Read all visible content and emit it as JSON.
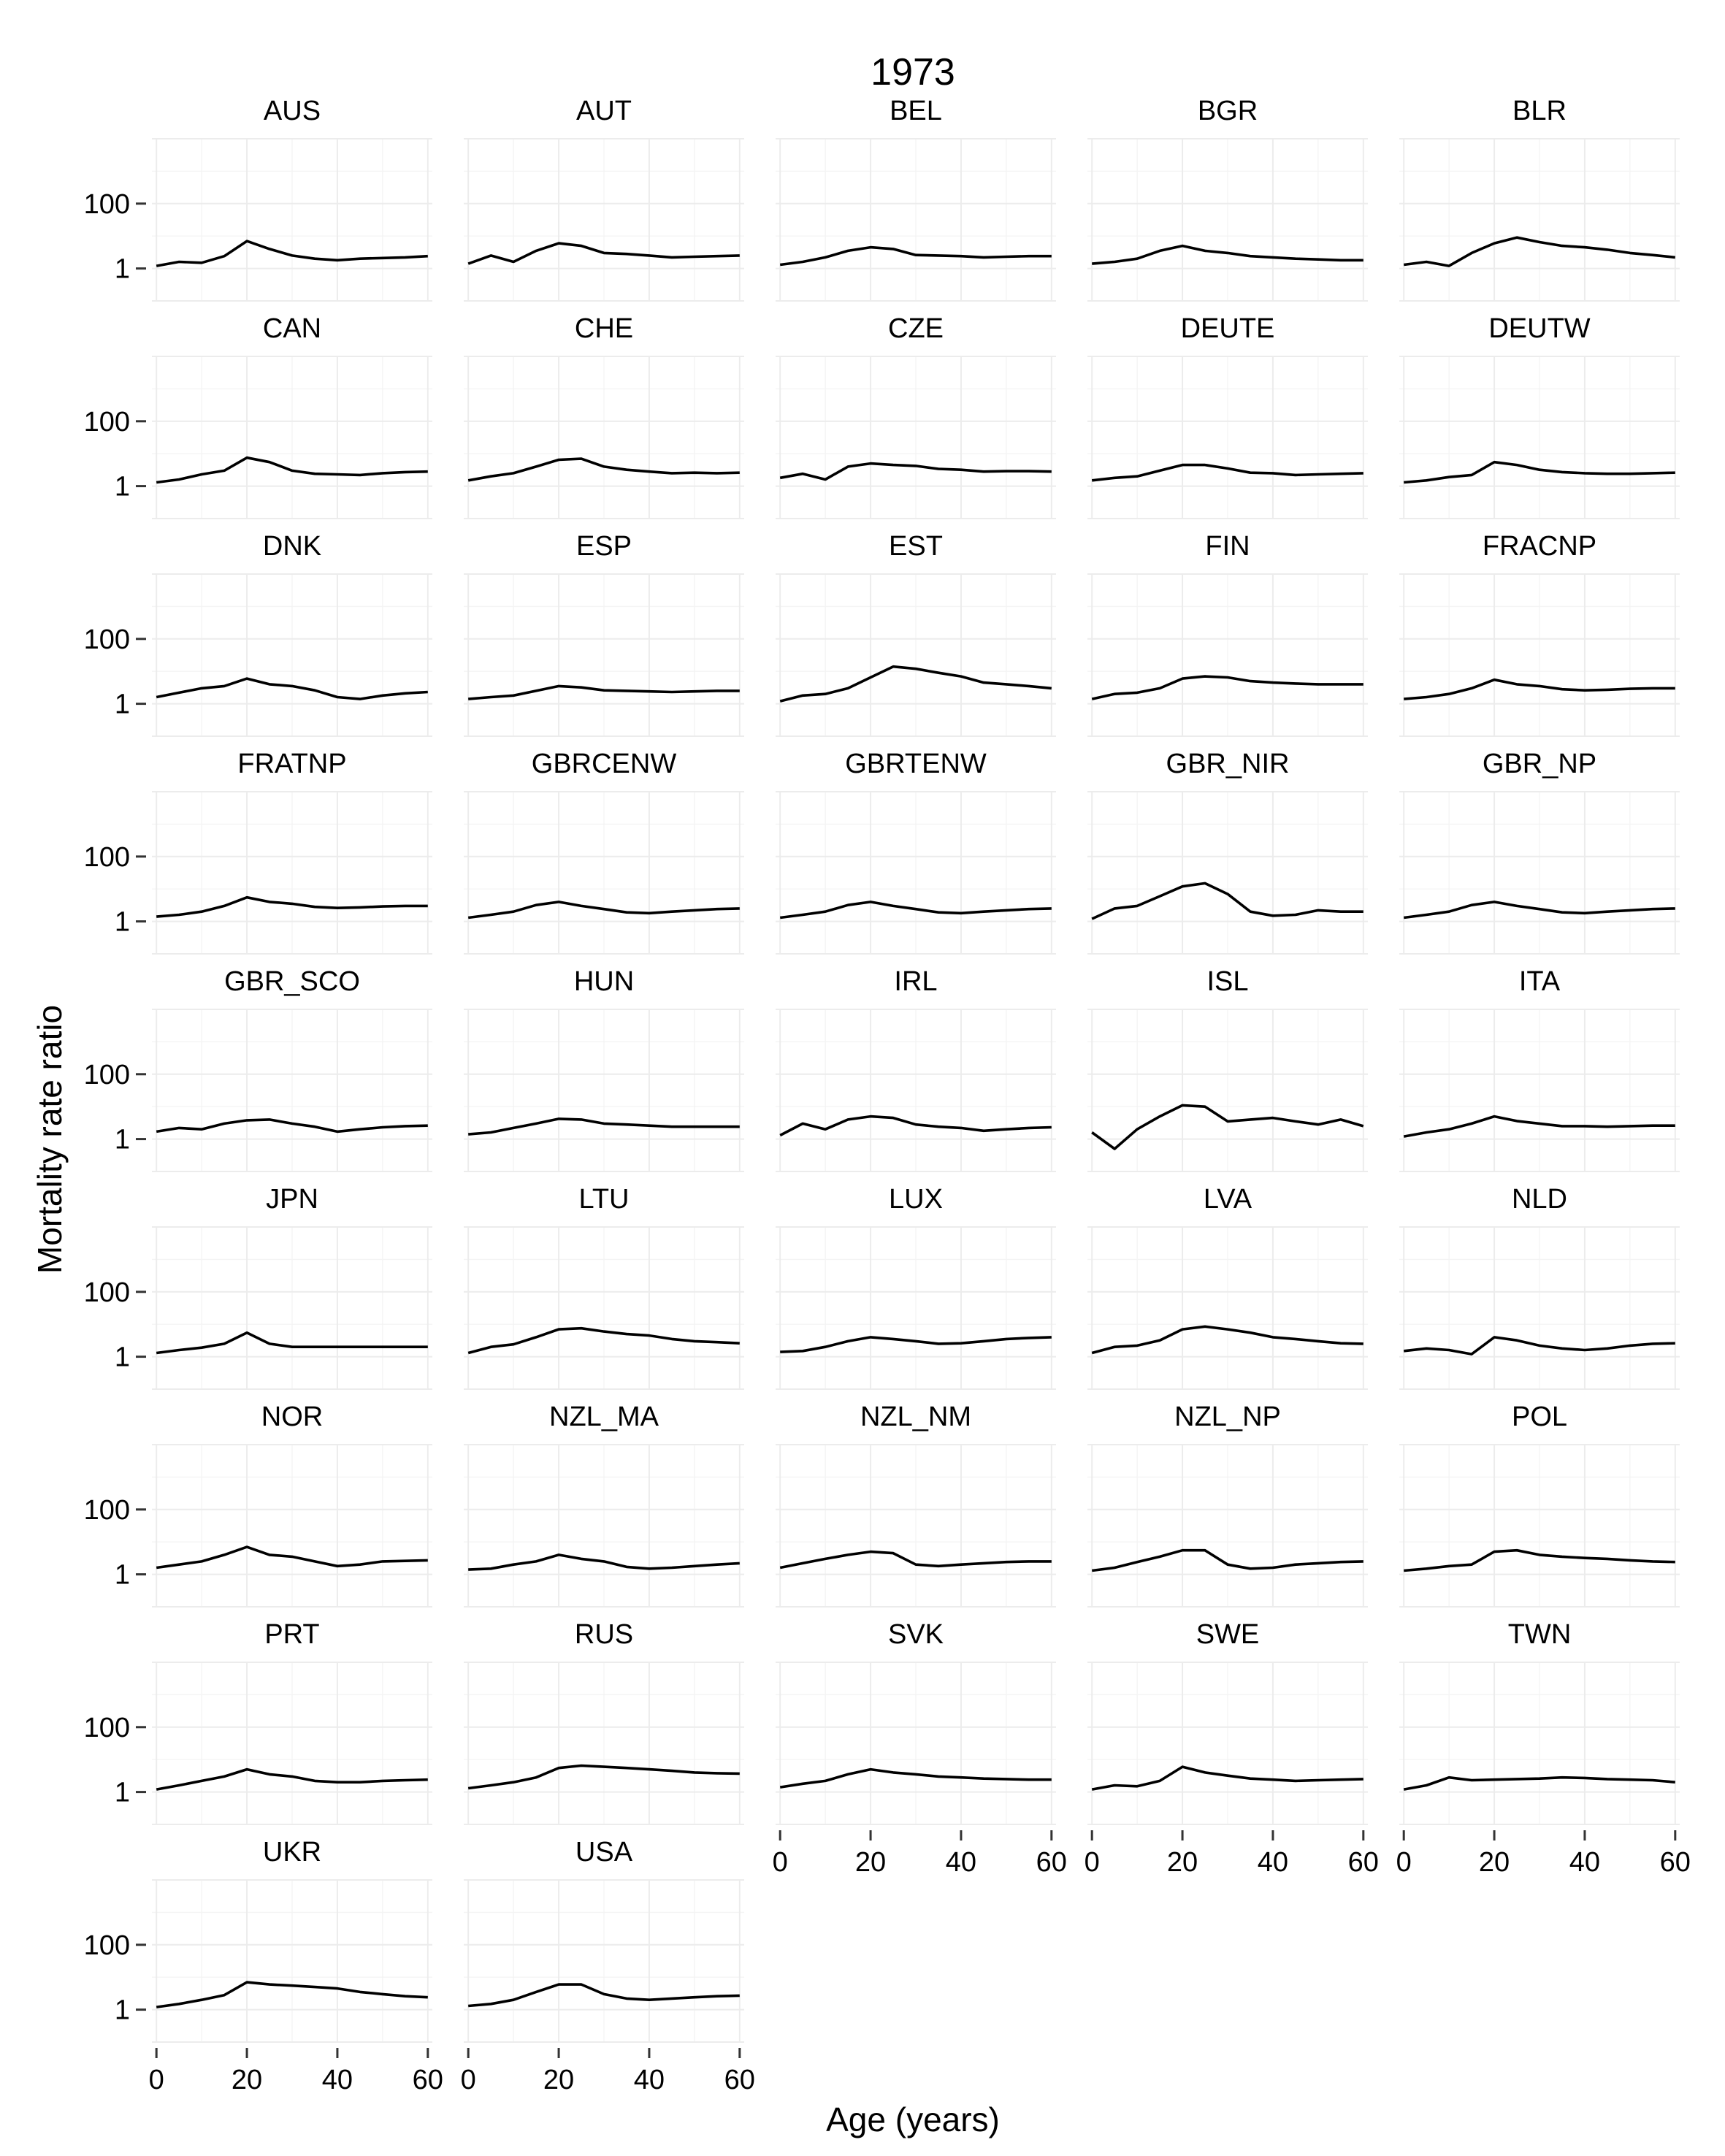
{
  "chart_data": {
    "type": "line",
    "title": "1973",
    "xlabel": "Age (years)",
    "ylabel": "Mortality rate ratio",
    "y_scale": "log10",
    "ylim": [
      0.1,
      10000
    ],
    "xlim": [
      -1,
      61
    ],
    "x_ticks": [
      0,
      20,
      40,
      60
    ],
    "x_tick_labels": [
      "0",
      "20",
      "40",
      "60"
    ],
    "y_ticks": [
      1,
      100
    ],
    "y_tick_labels": [
      "1",
      "100"
    ],
    "grid": true,
    "ncols": 5,
    "x": [
      0,
      5,
      10,
      15,
      20,
      25,
      30,
      35,
      40,
      45,
      50,
      55,
      60
    ],
    "panels": [
      {
        "name": "AUS",
        "y": [
          1.2,
          1.6,
          1.5,
          2.4,
          7.0,
          4.0,
          2.5,
          2.0,
          1.8,
          2.0,
          2.1,
          2.2,
          2.4
        ]
      },
      {
        "name": "AUT",
        "y": [
          1.4,
          2.5,
          1.6,
          3.5,
          6.0,
          5.0,
          3.0,
          2.8,
          2.5,
          2.2,
          2.3,
          2.4,
          2.5
        ]
      },
      {
        "name": "BEL",
        "y": [
          1.3,
          1.6,
          2.2,
          3.5,
          4.5,
          4.0,
          2.6,
          2.5,
          2.4,
          2.2,
          2.3,
          2.4,
          2.4
        ]
      },
      {
        "name": "BGR",
        "y": [
          1.4,
          1.6,
          2.0,
          3.5,
          5.0,
          3.5,
          3.0,
          2.4,
          2.2,
          2.0,
          1.9,
          1.8,
          1.8
        ]
      },
      {
        "name": "BLR",
        "y": [
          1.3,
          1.6,
          1.2,
          3.0,
          6.0,
          9.0,
          6.5,
          5.0,
          4.5,
          3.8,
          3.0,
          2.6,
          2.2
        ]
      },
      {
        "name": "CAN",
        "y": [
          1.3,
          1.6,
          2.3,
          3.0,
          7.5,
          5.5,
          3.0,
          2.4,
          2.3,
          2.2,
          2.5,
          2.7,
          2.8
        ]
      },
      {
        "name": "CHE",
        "y": [
          1.5,
          2.0,
          2.5,
          4.0,
          6.5,
          7.0,
          4.0,
          3.2,
          2.8,
          2.5,
          2.6,
          2.5,
          2.6
        ]
      },
      {
        "name": "CZE",
        "y": [
          1.8,
          2.4,
          1.6,
          4.0,
          5.0,
          4.5,
          4.2,
          3.4,
          3.2,
          2.8,
          2.9,
          2.9,
          2.8
        ]
      },
      {
        "name": "DEUTE",
        "y": [
          1.5,
          1.8,
          2.0,
          3.0,
          4.5,
          4.5,
          3.5,
          2.6,
          2.5,
          2.2,
          2.3,
          2.4,
          2.5
        ]
      },
      {
        "name": "DEUTW",
        "y": [
          1.3,
          1.5,
          1.9,
          2.2,
          5.5,
          4.5,
          3.2,
          2.7,
          2.5,
          2.4,
          2.4,
          2.5,
          2.6
        ]
      },
      {
        "name": "DNK",
        "y": [
          1.6,
          2.2,
          3.0,
          3.5,
          6.0,
          4.0,
          3.5,
          2.6,
          1.6,
          1.4,
          1.8,
          2.1,
          2.3
        ]
      },
      {
        "name": "ESP",
        "y": [
          1.4,
          1.6,
          1.8,
          2.5,
          3.5,
          3.2,
          2.6,
          2.5,
          2.4,
          2.3,
          2.4,
          2.5,
          2.5
        ]
      },
      {
        "name": "EST",
        "y": [
          1.2,
          1.8,
          2.0,
          3.0,
          6.5,
          14.0,
          12.0,
          9.0,
          7.0,
          4.5,
          4.0,
          3.5,
          3.0
        ]
      },
      {
        "name": "FIN",
        "y": [
          1.4,
          2.0,
          2.2,
          3.0,
          6.0,
          7.0,
          6.5,
          5.0,
          4.5,
          4.2,
          4.0,
          4.0,
          4.0
        ]
      },
      {
        "name": "FRACNP",
        "y": [
          1.4,
          1.6,
          2.0,
          3.0,
          5.5,
          4.0,
          3.5,
          2.8,
          2.6,
          2.7,
          2.9,
          3.0,
          3.0
        ]
      },
      {
        "name": "FRATNP",
        "y": [
          1.4,
          1.6,
          2.0,
          3.0,
          5.5,
          4.0,
          3.5,
          2.8,
          2.6,
          2.7,
          2.9,
          3.0,
          3.0
        ]
      },
      {
        "name": "GBRCENW",
        "y": [
          1.3,
          1.6,
          2.0,
          3.2,
          4.0,
          3.0,
          2.4,
          1.9,
          1.8,
          2.0,
          2.2,
          2.4,
          2.5
        ]
      },
      {
        "name": "GBRTENW",
        "y": [
          1.3,
          1.6,
          2.0,
          3.2,
          4.0,
          3.0,
          2.4,
          1.9,
          1.8,
          2.0,
          2.2,
          2.4,
          2.5
        ]
      },
      {
        "name": "GBR_NIR",
        "y": [
          1.2,
          2.5,
          3.0,
          6.0,
          12.0,
          15.0,
          7.0,
          2.0,
          1.5,
          1.6,
          2.2,
          2.0,
          2.0
        ]
      },
      {
        "name": "GBR_NP",
        "y": [
          1.3,
          1.6,
          2.0,
          3.2,
          4.0,
          3.0,
          2.4,
          1.9,
          1.8,
          2.0,
          2.2,
          2.4,
          2.5
        ]
      },
      {
        "name": "GBR_SCO",
        "y": [
          1.7,
          2.2,
          2.0,
          3.0,
          3.8,
          4.0,
          3.0,
          2.4,
          1.7,
          2.0,
          2.3,
          2.5,
          2.6
        ]
      },
      {
        "name": "HUN",
        "y": [
          1.4,
          1.6,
          2.2,
          3.0,
          4.2,
          4.0,
          3.0,
          2.8,
          2.6,
          2.4,
          2.4,
          2.4,
          2.4
        ]
      },
      {
        "name": "IRL",
        "y": [
          1.3,
          3.0,
          2.0,
          4.0,
          5.0,
          4.5,
          2.8,
          2.4,
          2.2,
          1.8,
          2.0,
          2.2,
          2.3
        ]
      },
      {
        "name": "ISL",
        "y": [
          1.6,
          0.5,
          2.0,
          5.0,
          11.0,
          10.0,
          3.5,
          4.0,
          4.5,
          3.5,
          2.8,
          4.0,
          2.5
        ]
      },
      {
        "name": "ITA",
        "y": [
          1.2,
          1.6,
          2.0,
          3.0,
          5.0,
          3.6,
          3.0,
          2.5,
          2.5,
          2.4,
          2.5,
          2.6,
          2.6
        ]
      },
      {
        "name": "JPN",
        "y": [
          1.3,
          1.6,
          1.9,
          2.5,
          5.5,
          2.5,
          2.0,
          2.0,
          2.0,
          2.0,
          2.0,
          2.0,
          2.0
        ]
      },
      {
        "name": "LTU",
        "y": [
          1.3,
          2.0,
          2.4,
          4.0,
          7.0,
          7.5,
          6.0,
          5.0,
          4.5,
          3.5,
          3.0,
          2.8,
          2.6
        ]
      },
      {
        "name": "LUX",
        "y": [
          1.4,
          1.5,
          2.0,
          3.0,
          4.0,
          3.5,
          3.0,
          2.5,
          2.6,
          3.0,
          3.5,
          3.8,
          4.0
        ]
      },
      {
        "name": "LVA",
        "y": [
          1.3,
          2.0,
          2.2,
          3.2,
          7.0,
          8.5,
          7.0,
          5.5,
          4.0,
          3.5,
          3.0,
          2.6,
          2.5
        ]
      },
      {
        "name": "NLD",
        "y": [
          1.5,
          1.8,
          1.6,
          1.2,
          4.0,
          3.2,
          2.2,
          1.8,
          1.6,
          1.8,
          2.2,
          2.5,
          2.6
        ]
      },
      {
        "name": "NOR",
        "y": [
          1.6,
          2.0,
          2.5,
          4.0,
          7.0,
          4.0,
          3.5,
          2.5,
          1.8,
          2.0,
          2.5,
          2.6,
          2.7
        ]
      },
      {
        "name": "NZL_MA",
        "y": [
          1.4,
          1.5,
          2.0,
          2.5,
          4.0,
          3.0,
          2.5,
          1.7,
          1.5,
          1.6,
          1.8,
          2.0,
          2.2
        ]
      },
      {
        "name": "NZL_NM",
        "y": [
          1.6,
          2.2,
          3.0,
          4.0,
          5.0,
          4.5,
          2.0,
          1.8,
          2.0,
          2.2,
          2.4,
          2.5,
          2.5
        ]
      },
      {
        "name": "NZL_NP",
        "y": [
          1.3,
          1.6,
          2.4,
          3.5,
          5.5,
          5.5,
          2.0,
          1.5,
          1.6,
          2.0,
          2.2,
          2.4,
          2.5
        ]
      },
      {
        "name": "POL",
        "y": [
          1.3,
          1.5,
          1.8,
          2.0,
          5.0,
          5.5,
          4.0,
          3.5,
          3.2,
          3.0,
          2.7,
          2.5,
          2.4
        ]
      },
      {
        "name": "PRT",
        "y": [
          1.2,
          1.6,
          2.2,
          3.0,
          5.0,
          3.5,
          3.0,
          2.2,
          2.0,
          2.0,
          2.2,
          2.3,
          2.4
        ]
      },
      {
        "name": "RUS",
        "y": [
          1.3,
          1.6,
          2.0,
          2.8,
          5.5,
          6.5,
          6.0,
          5.5,
          5.0,
          4.5,
          4.0,
          3.8,
          3.7
        ]
      },
      {
        "name": "SVK",
        "y": [
          1.4,
          1.8,
          2.2,
          3.5,
          5.0,
          4.0,
          3.5,
          3.0,
          2.8,
          2.6,
          2.5,
          2.4,
          2.4
        ]
      },
      {
        "name": "SWE",
        "y": [
          1.2,
          1.6,
          1.5,
          2.2,
          6.0,
          4.0,
          3.2,
          2.6,
          2.4,
          2.2,
          2.3,
          2.4,
          2.5
        ]
      },
      {
        "name": "TWN",
        "y": [
          1.2,
          1.6,
          2.8,
          2.3,
          2.4,
          2.5,
          2.6,
          2.8,
          2.7,
          2.5,
          2.4,
          2.3,
          2.0
        ]
      },
      {
        "name": "UKR",
        "y": [
          1.2,
          1.5,
          2.0,
          2.8,
          7.0,
          6.0,
          5.5,
          5.0,
          4.5,
          3.5,
          3.0,
          2.6,
          2.4
        ]
      },
      {
        "name": "USA",
        "y": [
          1.3,
          1.5,
          2.0,
          3.5,
          6.0,
          6.0,
          3.0,
          2.2,
          2.0,
          2.2,
          2.4,
          2.6,
          2.7
        ]
      }
    ]
  }
}
